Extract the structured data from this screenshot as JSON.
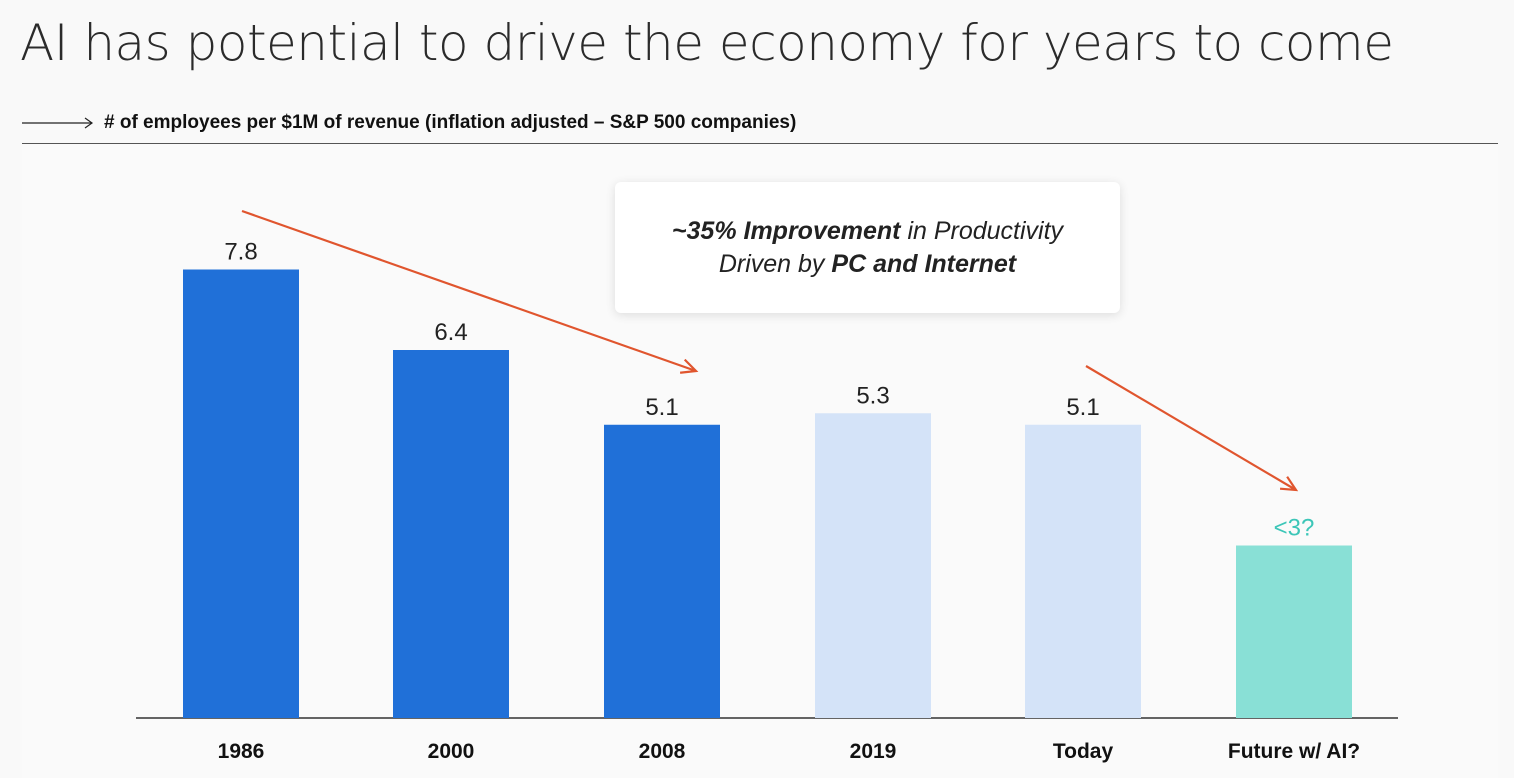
{
  "title": "AI has potential to drive the economy for years to come",
  "subtitle": "# of employees per $1M of revenue (inflation adjusted – S&P 500 companies)",
  "callout": {
    "line1_prefix": "~35% Improvement",
    "line1_suffix": " in Productivity",
    "line2_prefix": "Driven by ",
    "line2_bold": "PC and Internet"
  },
  "colors": {
    "dark_blue": "#2070d8",
    "light_blue": "#d4e3f8",
    "teal": "#89e0d6",
    "arrow": "#e0552e",
    "teal_label": "#3cc6b8"
  },
  "chart_data": {
    "type": "bar",
    "categories": [
      "1986",
      "2000",
      "2008",
      "2019",
      "Today",
      "Future w/ AI?"
    ],
    "values": [
      7.8,
      6.4,
      5.1,
      5.3,
      5.1,
      3
    ],
    "data_labels": [
      "7.8",
      "6.4",
      "5.1",
      "5.3",
      "5.1",
      "<3?"
    ],
    "title": "",
    "xlabel": "",
    "ylabel": "",
    "ylim": [
      0,
      7.8
    ],
    "grid": false
  }
}
